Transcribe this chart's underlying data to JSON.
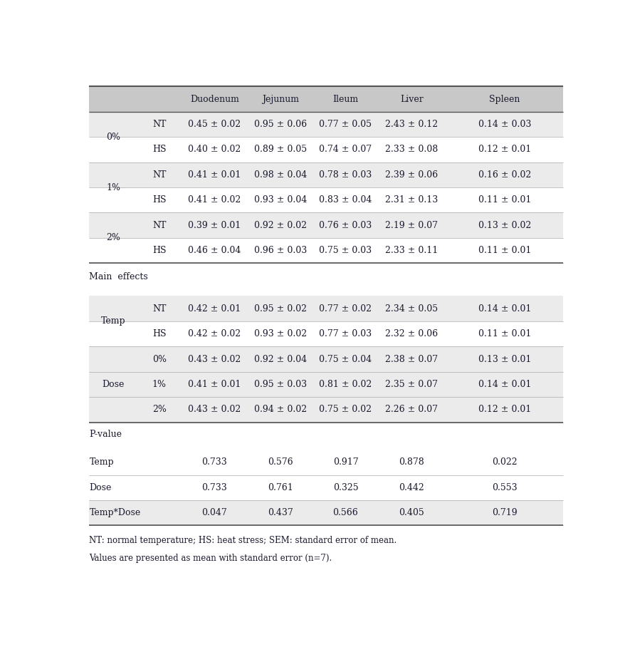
{
  "columns": [
    "Duodenum",
    "Jejunum",
    "Ileum",
    "Liver",
    "Spleen"
  ],
  "header_bg": "#c8c8c8",
  "shaded_bg": "#ebebeb",
  "white_bg": "#ffffff",
  "rows": [
    {
      "group": "0%",
      "subgroup": "NT",
      "vals": [
        "0.45 ± 0.02",
        "0.95 ± 0.06",
        "0.77 ± 0.05",
        "2.43 ± 0.12",
        "0.14 ± 0.03"
      ],
      "shaded": true,
      "show_group": false
    },
    {
      "group": "0%",
      "subgroup": "HS",
      "vals": [
        "0.40 ± 0.02",
        "0.89 ± 0.05",
        "0.74 ± 0.07",
        "2.33 ± 0.08",
        "0.12 ± 0.01"
      ],
      "shaded": false,
      "show_group": true
    },
    {
      "group": "1%",
      "subgroup": "NT",
      "vals": [
        "0.41 ± 0.01",
        "0.98 ± 0.04",
        "0.78 ± 0.03",
        "2.39 ± 0.06",
        "0.16 ± 0.02"
      ],
      "shaded": true,
      "show_group": false
    },
    {
      "group": "1%",
      "subgroup": "HS",
      "vals": [
        "0.41 ± 0.02",
        "0.93 ± 0.04",
        "0.83 ± 0.04",
        "2.31 ± 0.13",
        "0.11 ± 0.01"
      ],
      "shaded": false,
      "show_group": true
    },
    {
      "group": "2%",
      "subgroup": "NT",
      "vals": [
        "0.39 ± 0.01",
        "0.92 ± 0.02",
        "0.76 ± 0.03",
        "2.19 ± 0.07",
        "0.13 ± 0.02"
      ],
      "shaded": true,
      "show_group": false
    },
    {
      "group": "2%",
      "subgroup": "HS",
      "vals": [
        "0.46 ± 0.04",
        "0.96 ± 0.03",
        "0.75 ± 0.03",
        "2.33 ± 0.11",
        "0.11 ± 0.01"
      ],
      "shaded": false,
      "show_group": true
    }
  ],
  "main_effects_rows": [
    {
      "group": "Temp",
      "subgroup": "NT",
      "vals": [
        "0.42 ± 0.01",
        "0.95 ± 0.02",
        "0.77 ± 0.02",
        "2.34 ± 0.05",
        "0.14 ± 0.01"
      ],
      "shaded": true,
      "show_group": false
    },
    {
      "group": "Temp",
      "subgroup": "HS",
      "vals": [
        "0.42 ± 0.02",
        "0.93 ± 0.02",
        "0.77 ± 0.03",
        "2.32 ± 0.06",
        "0.11 ± 0.01"
      ],
      "shaded": false,
      "show_group": true
    },
    {
      "group": "Dose",
      "subgroup": "0%",
      "vals": [
        "0.43 ± 0.02",
        "0.92 ± 0.04",
        "0.75 ± 0.04",
        "2.38 ± 0.07",
        "0.13 ± 0.01"
      ],
      "shaded": true,
      "show_group": true
    },
    {
      "group": "Dose",
      "subgroup": "1%",
      "vals": [
        "0.41 ± 0.01",
        "0.95 ± 0.03",
        "0.81 ± 0.02",
        "2.35 ± 0.07",
        "0.14 ± 0.01"
      ],
      "shaded": true,
      "show_group": false
    },
    {
      "group": "Dose",
      "subgroup": "2%",
      "vals": [
        "0.43 ± 0.02",
        "0.94 ± 0.02",
        "0.75 ± 0.02",
        "2.26 ± 0.07",
        "0.12 ± 0.01"
      ],
      "shaded": true,
      "show_group": false
    }
  ],
  "pvalue_rows": [
    {
      "label": "Temp",
      "vals": [
        "0.733",
        "0.576",
        "0.917",
        "0.878",
        "0.022"
      ],
      "shaded": false
    },
    {
      "label": "Dose",
      "vals": [
        "0.733",
        "0.761",
        "0.325",
        "0.442",
        "0.553"
      ],
      "shaded": false
    },
    {
      "label": "Temp*Dose",
      "vals": [
        "0.047",
        "0.437",
        "0.566",
        "0.405",
        "0.719"
      ],
      "shaded": true
    }
  ],
  "footnote1": "NT: normal temperature; HS: heat stress; SEM: standard error of mean.",
  "footnote2": "Values are presented as mean with standard error (n=7).",
  "font_size": 9.0,
  "header_font_size": 9.0
}
